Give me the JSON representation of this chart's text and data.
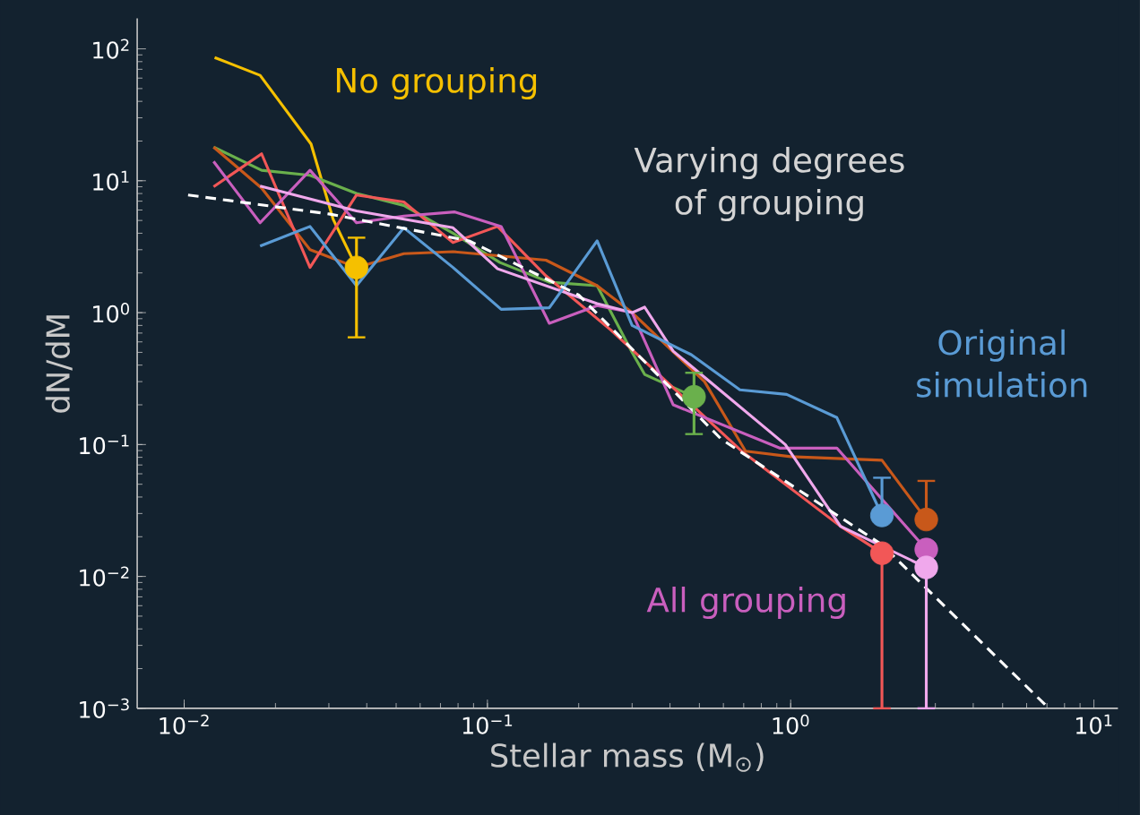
{
  "chart_data": {
    "type": "line",
    "xlabel": "Stellar mass (M$_{⊙}$)",
    "ylabel": "dN/dM",
    "log": "xy",
    "grid": false,
    "xlim": [
      0.007,
      12
    ],
    "ylim": [
      0.001,
      170
    ],
    "xticks": [
      {
        "value": 0.01,
        "label": "10$^{−2}$"
      },
      {
        "value": 0.1,
        "label": "10$^{−1}$"
      },
      {
        "value": 1,
        "label": "10$^{0}$"
      },
      {
        "value": 10,
        "label": "10$^{1}$"
      }
    ],
    "yticks": [
      {
        "value": 0.001,
        "label": "10$^{−3}$"
      },
      {
        "value": 0.01,
        "label": "10$^{−2}$"
      },
      {
        "value": 0.1,
        "label": "10$^{−1}$"
      },
      {
        "value": 1,
        "label": "10$^{0}$"
      },
      {
        "value": 10,
        "label": "10$^{1}$"
      },
      {
        "value": 100,
        "label": "10$^{2}$"
      }
    ],
    "annotations": [
      "Varying degrees of grouping"
    ],
    "series": [
      {
        "type": "line",
        "name": "No grouping",
        "color": "#f5c000",
        "x": [
          0.0126,
          0.0178,
          0.0262,
          0.031,
          0.037
        ],
        "values": [
          86,
          63,
          19,
          5.1,
          2.2
        ]
      },
      {
        "type": "line",
        "color": "#6ab04c",
        "x": [
          0.0125,
          0.018,
          0.026,
          0.037,
          0.053,
          0.077,
          0.11,
          0.16,
          0.23,
          0.3,
          0.33,
          0.48
        ],
        "values": [
          18,
          12,
          11,
          8,
          6.5,
          4,
          2.4,
          1.7,
          1.6,
          0.5,
          0.34,
          0.23
        ]
      },
      {
        "type": "line",
        "color": "#c8581a",
        "x": [
          0.0125,
          0.018,
          0.026,
          0.037,
          0.053,
          0.077,
          0.108,
          0.156,
          0.23,
          0.3,
          0.52,
          0.71,
          1.0,
          2.0,
          2.8
        ],
        "values": [
          18,
          8.8,
          3.0,
          2.2,
          2.8,
          2.9,
          2.7,
          2.5,
          1.6,
          1.0,
          0.3,
          0.089,
          0.081,
          0.076,
          0.027
        ]
      },
      {
        "type": "line",
        "color": "#f25757",
        "x": [
          0.0125,
          0.018,
          0.026,
          0.037,
          0.053,
          0.077,
          0.108,
          0.156,
          0.255,
          0.69,
          1.46,
          2.0
        ],
        "values": [
          9,
          16,
          2.2,
          7.8,
          6.9,
          3.4,
          4.5,
          1.9,
          0.74,
          0.089,
          0.024,
          0.015
        ]
      },
      {
        "type": "line",
        "name": "All grouping",
        "color": "#c95fbe",
        "x": [
          0.0125,
          0.0178,
          0.026,
          0.037,
          0.053,
          0.078,
          0.111,
          0.16,
          0.23,
          0.3,
          0.41,
          0.92,
          1.42,
          2.8
        ],
        "values": [
          14,
          4.8,
          12,
          4.8,
          5.4,
          5.8,
          4.5,
          0.83,
          1.13,
          1.0,
          0.2,
          0.094,
          0.094,
          0.016
        ]
      },
      {
        "type": "line",
        "color": "#f0a8ec",
        "x": [
          0.0178,
          0.037,
          0.077,
          0.108,
          0.23,
          0.3,
          0.33,
          0.41,
          0.96,
          1.46,
          2.8
        ],
        "values": [
          9.1,
          5.9,
          4.4,
          2.15,
          1.17,
          1.0,
          1.1,
          0.51,
          0.1,
          0.024,
          0.0117
        ]
      },
      {
        "type": "line",
        "name": "Original simulation",
        "color": "#5a9bd5",
        "x": [
          0.0178,
          0.026,
          0.037,
          0.053,
          0.077,
          0.111,
          0.16,
          0.23,
          0.3,
          0.47,
          0.68,
          0.97,
          1.42,
          2.0
        ],
        "values": [
          3.2,
          4.5,
          1.6,
          4.4,
          2.2,
          1.06,
          1.09,
          3.5,
          0.8,
          0.48,
          0.26,
          0.24,
          0.16,
          0.029
        ]
      },
      {
        "type": "line",
        "color": "#ffffff",
        "line_style": "dashed",
        "x": [
          0.0103,
          0.03,
          0.087,
          0.2,
          0.59,
          2.0,
          7.1
        ],
        "values": [
          7.8,
          5.6,
          3.5,
          1.36,
          0.11,
          0.0174,
          0.001
        ]
      },
      {
        "type": "scatter",
        "marker": "circle",
        "color": "#f5c000",
        "x": [
          0.037
        ],
        "values": [
          2.2
        ],
        "errors": [
          [
            0.65,
            3.7
          ]
        ]
      },
      {
        "type": "scatter",
        "marker": "circle",
        "color": "#6ab04c",
        "x": [
          0.48
        ],
        "values": [
          0.23
        ],
        "errors": [
          [
            0.12,
            0.35
          ]
        ]
      },
      {
        "type": "scatter",
        "marker": "circle",
        "color": "#5a9bd5",
        "x": [
          2.0
        ],
        "values": [
          0.029
        ],
        "errors": [
          [
            0.029,
            0.056
          ]
        ]
      },
      {
        "type": "scatter",
        "marker": "circle",
        "color": "#c8581a",
        "x": [
          2.8
        ],
        "values": [
          0.027
        ],
        "errors": [
          [
            0.027,
            0.053
          ]
        ]
      },
      {
        "type": "scatter",
        "marker": "circle",
        "color": "#c95fbe",
        "x": [
          2.8
        ],
        "values": [
          0.016
        ]
      },
      {
        "type": "scatter",
        "marker": "circle",
        "color": "#f25757",
        "x": [
          2.0
        ],
        "values": [
          0.015
        ],
        "errors": [
          [
            0.001,
            0.015
          ]
        ]
      },
      {
        "type": "scatter",
        "marker": "circle",
        "color": "#f0a8ec",
        "x": [
          2.8
        ],
        "values": [
          0.0117
        ],
        "errors": [
          [
            0.001,
            0.0117
          ]
        ]
      }
    ]
  }
}
